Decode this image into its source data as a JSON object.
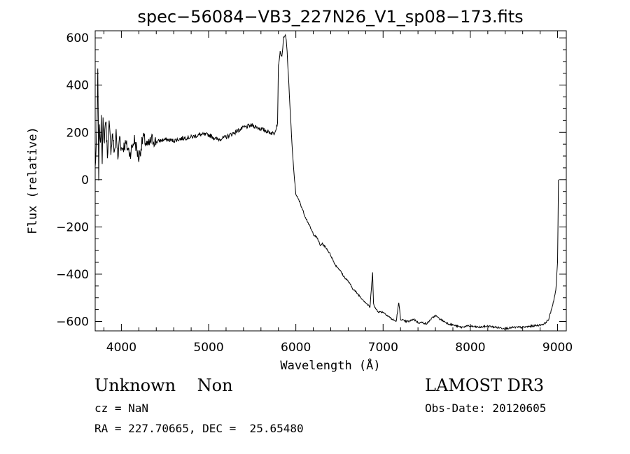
{
  "chart_data": {
    "type": "line",
    "title": "spec−56084−VB3_227N26_V1_sp08−173.fits",
    "xlabel": "Wavelength (Å)",
    "ylabel": "Flux (relative)",
    "xlim": [
      3700,
      9100
    ],
    "ylim": [
      -640,
      630
    ],
    "xticks": [
      4000,
      5000,
      6000,
      7000,
      8000,
      9000
    ],
    "xtick_labels": [
      "4000",
      "5000",
      "6000",
      "7000",
      "8000",
      "9000"
    ],
    "yticks": [
      -600,
      -400,
      -200,
      0,
      200,
      400,
      600
    ],
    "ytick_labels": [
      "−600",
      "−400",
      "−200",
      "0",
      "200",
      "400",
      "600"
    ],
    "grid": false,
    "series": [
      {
        "name": "spectrum",
        "x": [
          3700,
          3720,
          3730,
          3740,
          3750,
          3760,
          3770,
          3780,
          3790,
          3800,
          3820,
          3840,
          3860,
          3880,
          3900,
          3920,
          3940,
          3960,
          3980,
          4000,
          4050,
          4100,
          4150,
          4200,
          4250,
          4300,
          4350,
          4400,
          4450,
          4500,
          4600,
          4700,
          4800,
          4900,
          5000,
          5100,
          5200,
          5300,
          5400,
          5500,
          5600,
          5700,
          5750,
          5790,
          5800,
          5820,
          5840,
          5860,
          5880,
          5890,
          5900,
          5920,
          5940,
          5960,
          5980,
          6000,
          6050,
          6100,
          6150,
          6200,
          6250,
          6280,
          6300,
          6350,
          6400,
          6450,
          6500,
          6550,
          6600,
          6650,
          6700,
          6750,
          6800,
          6850,
          6880,
          6890,
          6900,
          6950,
          7000,
          7050,
          7100,
          7150,
          7180,
          7200,
          7250,
          7300,
          7350,
          7400,
          7450,
          7500,
          7550,
          7600,
          7650,
          7700,
          7750,
          7800,
          7850,
          7900,
          7950,
          8000,
          8100,
          8200,
          8300,
          8400,
          8500,
          8600,
          8700,
          8800,
          8850,
          8900,
          8950,
          8980,
          9000,
          9010
        ],
        "y": [
          50,
          200,
          450,
          20,
          250,
          130,
          280,
          90,
          240,
          150,
          260,
          110,
          230,
          130,
          200,
          100,
          210,
          80,
          190,
          130,
          150,
          110,
          170,
          90,
          180,
          140,
          170,
          160,
          165,
          170,
          165,
          175,
          180,
          190,
          190,
          170,
          180,
          200,
          220,
          230,
          215,
          200,
          195,
          240,
          480,
          540,
          520,
          600,
          610,
          590,
          540,
          400,
          260,
          120,
          20,
          -60,
          -100,
          -150,
          -190,
          -230,
          -250,
          -280,
          -270,
          -290,
          -320,
          -360,
          -380,
          -410,
          -430,
          -460,
          -480,
          -500,
          -520,
          -540,
          -390,
          -520,
          -540,
          -560,
          -560,
          -575,
          -590,
          -600,
          -520,
          -590,
          -600,
          -600,
          -590,
          -605,
          -605,
          -610,
          -590,
          -575,
          -590,
          -600,
          -610,
          -615,
          -620,
          -625,
          -620,
          -620,
          -625,
          -620,
          -625,
          -630,
          -625,
          -625,
          -620,
          -615,
          -610,
          -590,
          -520,
          -470,
          -350,
          0
        ]
      }
    ]
  },
  "info": {
    "classification": "Unknown    Non",
    "cz": "cz = NaN",
    "coords": "RA = 227.70665, DEC =  25.65480",
    "survey": "LAMOST DR3",
    "obs_date": "Obs-Date: 20120605"
  },
  "colors": {
    "line": "#000000",
    "background": "#ffffff"
  }
}
